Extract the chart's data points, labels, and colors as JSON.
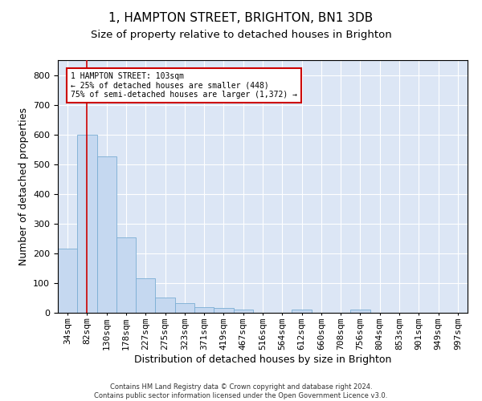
{
  "title": "1, HAMPTON STREET, BRIGHTON, BN1 3DB",
  "subtitle": "Size of property relative to detached houses in Brighton",
  "xlabel": "Distribution of detached houses by size in Brighton",
  "ylabel": "Number of detached properties",
  "categories": [
    "34sqm",
    "82sqm",
    "130sqm",
    "178sqm",
    "227sqm",
    "275sqm",
    "323sqm",
    "371sqm",
    "419sqm",
    "467sqm",
    "516sqm",
    "564sqm",
    "612sqm",
    "660sqm",
    "708sqm",
    "756sqm",
    "804sqm",
    "853sqm",
    "901sqm",
    "949sqm",
    "997sqm"
  ],
  "values": [
    215,
    600,
    525,
    255,
    117,
    52,
    32,
    20,
    16,
    10,
    0,
    0,
    10,
    0,
    0,
    10,
    0,
    0,
    0,
    0,
    0
  ],
  "bar_color": "#c5d8f0",
  "bar_edge_color": "#7aadd4",
  "background_color": "#dce6f5",
  "grid_color": "#ffffff",
  "annotation_text": "1 HAMPTON STREET: 103sqm\n← 25% of detached houses are smaller (448)\n75% of semi-detached houses are larger (1,372) →",
  "annotation_box_color": "#ffffff",
  "annotation_box_edge_color": "#cc0000",
  "vline_x": 1,
  "vline_color": "#cc0000",
  "ylim": [
    0,
    850
  ],
  "yticks": [
    0,
    100,
    200,
    300,
    400,
    500,
    600,
    700,
    800
  ],
  "footer": "Contains HM Land Registry data © Crown copyright and database right 2024.\nContains public sector information licensed under the Open Government Licence v3.0.",
  "title_fontsize": 11,
  "subtitle_fontsize": 9.5,
  "ylabel_fontsize": 9,
  "xlabel_fontsize": 9,
  "tick_fontsize": 8,
  "annotation_fontsize": 7,
  "footer_fontsize": 6
}
